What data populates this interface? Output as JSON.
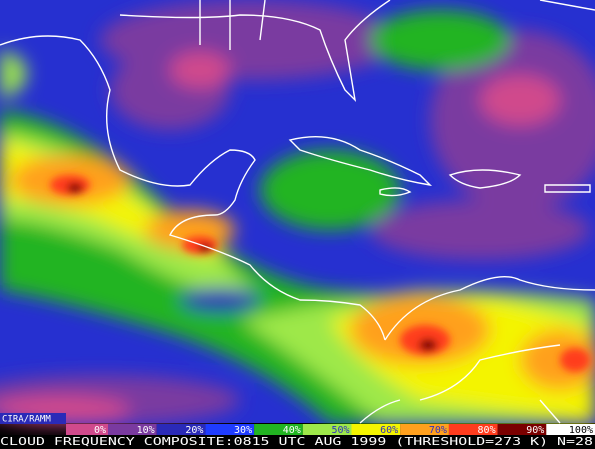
{
  "credit": "CIRA/RAMM",
  "legend": {
    "labels": [
      "0%",
      "10%",
      "20%",
      "30%",
      "40%",
      "50%",
      "60%",
      "70%",
      "80%",
      "90%",
      "100%"
    ],
    "colors": [
      "#d04a8c",
      "#7a3aa0",
      "#2a2ab8",
      "#1f3cff",
      "#22b422",
      "#9ee84a",
      "#f4f400",
      "#ffa01e",
      "#ff3c1e",
      "#7a0000",
      "#ffffff"
    ]
  },
  "caption": "CLOUD FREQUENCY COMPOSITE:0815 UTC AUG 1999 (THRESHOLD=273 K) N=28"
}
